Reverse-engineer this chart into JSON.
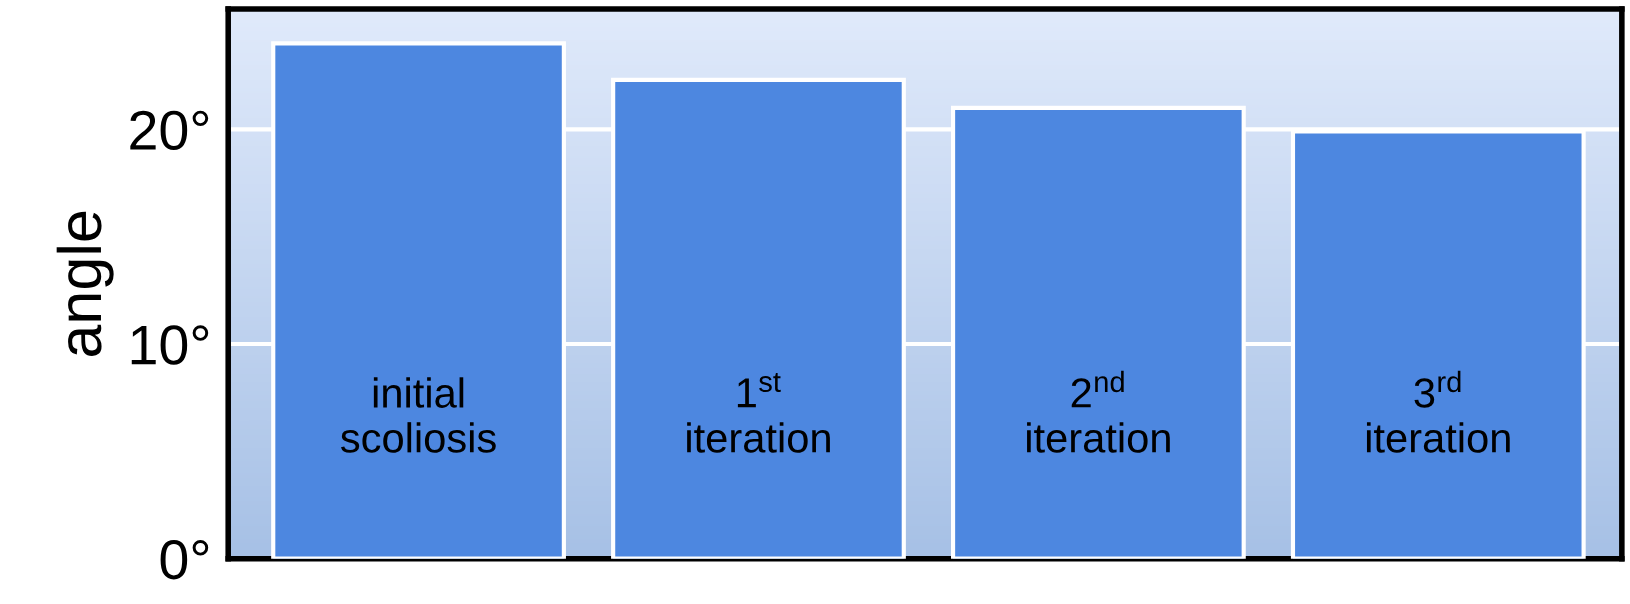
{
  "chart_data": {
    "type": "bar",
    "ylabel": "angle",
    "categories": [
      "initial\nscoliosis",
      "1$^{st}$\niteration",
      "2$^{nd}$\niteration",
      "3$^{rd}$\niteration"
    ],
    "values": [
      24.0,
      22.3,
      21.0,
      19.9
    ],
    "color": "#4d87e0",
    "ylim": [
      0,
      25.6
    ],
    "yticks": [
      {
        "value": 0,
        "label": "0°"
      },
      {
        "value": 10,
        "label": "10°"
      },
      {
        "value": 20,
        "label": "20°"
      }
    ],
    "grid": "y"
  }
}
